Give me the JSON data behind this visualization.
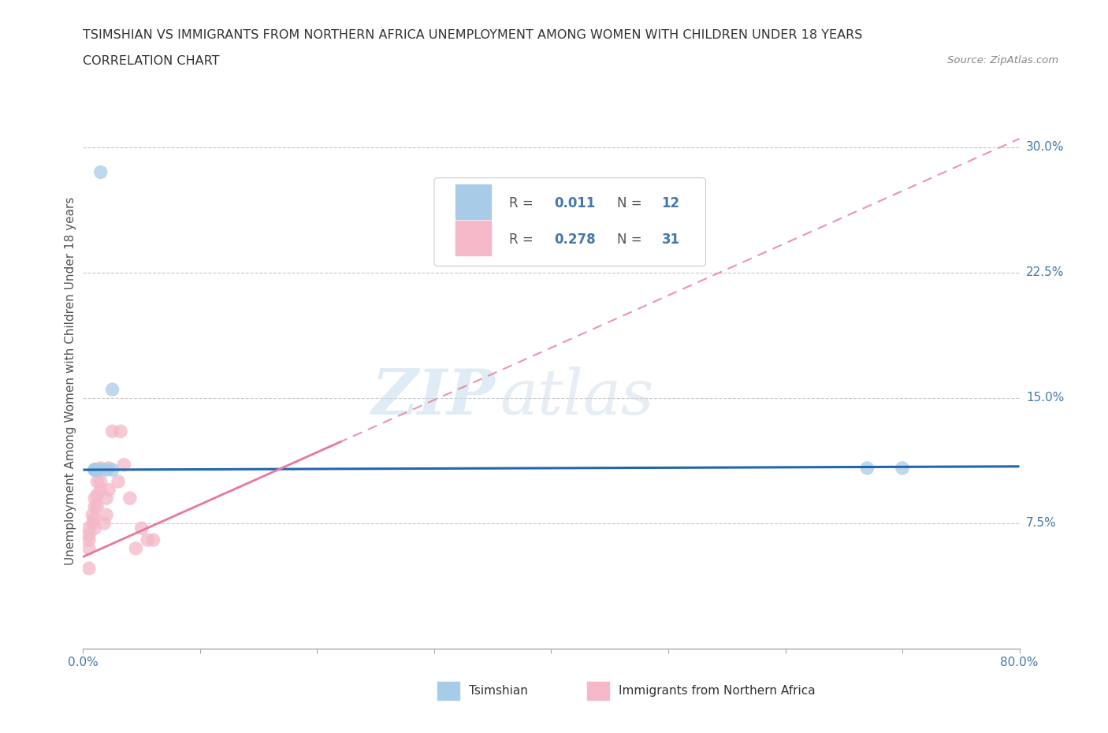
{
  "title": "TSIMSHIAN VS IMMIGRANTS FROM NORTHERN AFRICA UNEMPLOYMENT AMONG WOMEN WITH CHILDREN UNDER 18 YEARS",
  "subtitle": "CORRELATION CHART",
  "source": "Source: ZipAtlas.com",
  "ylabel": "Unemployment Among Women with Children Under 18 years",
  "xlim": [
    0.0,
    0.8
  ],
  "ylim": [
    0.0,
    0.32
  ],
  "tsimshian_x": [
    0.015,
    0.01,
    0.01,
    0.01,
    0.01,
    0.01,
    0.015,
    0.02,
    0.025,
    0.025,
    0.67,
    0.7
  ],
  "tsimshian_y": [
    0.285,
    0.107,
    0.107,
    0.107,
    0.107,
    0.107,
    0.107,
    0.107,
    0.155,
    0.107,
    0.108,
    0.108
  ],
  "immigrants_x": [
    0.005,
    0.005,
    0.005,
    0.005,
    0.008,
    0.008,
    0.01,
    0.01,
    0.01,
    0.01,
    0.012,
    0.012,
    0.012,
    0.015,
    0.015,
    0.015,
    0.018,
    0.02,
    0.02,
    0.022,
    0.022,
    0.025,
    0.03,
    0.032,
    0.035,
    0.04,
    0.045,
    0.05,
    0.055,
    0.06,
    0.005
  ],
  "immigrants_y": [
    0.06,
    0.065,
    0.068,
    0.072,
    0.075,
    0.08,
    0.072,
    0.078,
    0.085,
    0.09,
    0.085,
    0.092,
    0.1,
    0.095,
    0.1,
    0.108,
    0.075,
    0.08,
    0.09,
    0.095,
    0.108,
    0.13,
    0.1,
    0.13,
    0.11,
    0.09,
    0.06,
    0.072,
    0.065,
    0.065,
    0.048
  ],
  "blue_color": "#a8cce8",
  "pink_color": "#f4b8c8",
  "blue_line_color": "#2166ac",
  "pink_line_color": "#e8799a",
  "r_tsimshian": "0.011",
  "n_tsimshian": "12",
  "r_immigrants": "0.278",
  "n_immigrants": "31",
  "legend_label_1": "Tsimshian",
  "legend_label_2": "Immigrants from Northern Africa",
  "watermark_zip": "ZIP",
  "watermark_atlas": "atlas",
  "grid_color": "#c8c8c8",
  "axis_label_color": "#4477aa",
  "text_color": "#333333",
  "source_color": "#888888"
}
